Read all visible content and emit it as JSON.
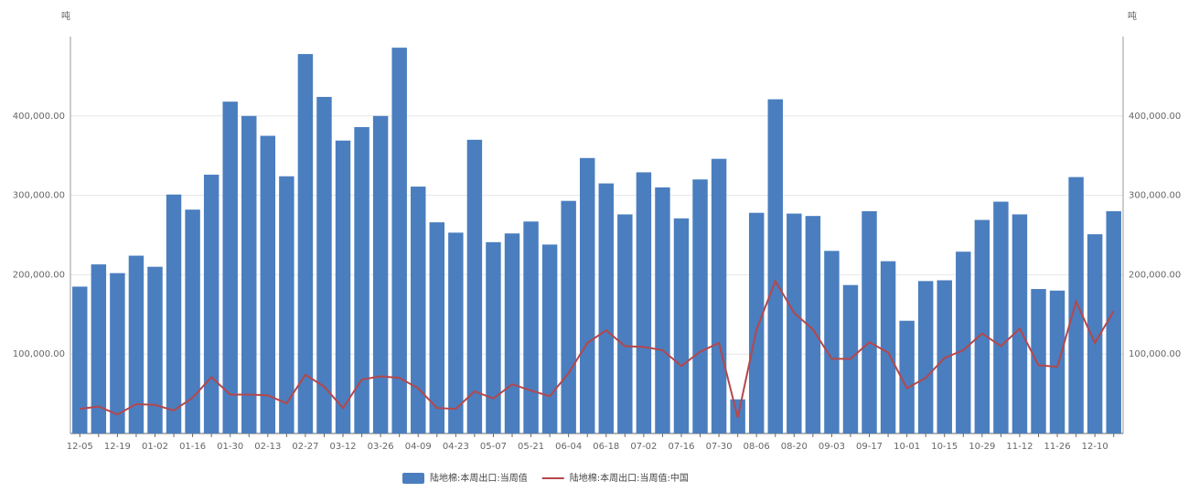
{
  "chart_data": {
    "type": "bar",
    "y_unit": "吨",
    "categories": [
      "12-05",
      null,
      "12-19",
      null,
      "01-02",
      null,
      "01-16",
      null,
      "01-30",
      null,
      "02-13",
      null,
      "02-27",
      null,
      "03-12",
      null,
      "03-26",
      null,
      "04-09",
      null,
      "04-23",
      null,
      "05-07",
      null,
      "05-21",
      null,
      "06-04",
      null,
      "06-18",
      null,
      "07-02",
      null,
      "07-16",
      null,
      "07-30",
      null,
      "08-06",
      null,
      "08-20",
      null,
      "09-03",
      null,
      "09-17",
      null,
      "10-01",
      null,
      "10-15",
      null,
      "10-29",
      null,
      "11-12",
      null,
      "11-26",
      null,
      "12-10",
      null
    ],
    "series": [
      {
        "name": "陆地棉:本周出口:当周值",
        "type": "bar",
        "color": "#4a7ebf",
        "values": [
          185000,
          213000,
          202000,
          224000,
          210000,
          301000,
          282000,
          326000,
          418000,
          400000,
          375000,
          324000,
          478000,
          424000,
          369000,
          386000,
          400000,
          486000,
          311000,
          266000,
          253000,
          370000,
          241000,
          252000,
          267000,
          238000,
          293000,
          347000,
          315000,
          276000,
          329000,
          310000,
          271000,
          320000,
          346000,
          43000,
          278000,
          421000,
          277000,
          274000,
          230000,
          187000,
          280000,
          217000,
          142000,
          192000,
          193000,
          229000,
          269000,
          292000,
          276000,
          182000,
          180000,
          323000,
          251000,
          280000
        ]
      },
      {
        "name": "陆地棉:本周出口:当周值:中国",
        "type": "line",
        "color": "#b5474b",
        "values": [
          31000,
          34000,
          24000,
          37000,
          36000,
          29000,
          45000,
          71000,
          49000,
          49000,
          48000,
          38000,
          74000,
          59000,
          32000,
          68000,
          72000,
          70000,
          57000,
          32000,
          31000,
          53000,
          44000,
          62000,
          54000,
          47000,
          76000,
          114000,
          130000,
          110000,
          109000,
          105000,
          85000,
          103000,
          114000,
          20000,
          131000,
          192000,
          152000,
          131000,
          94000,
          94000,
          115000,
          102000,
          57000,
          70000,
          95000,
          105000,
          126000,
          110000,
          132000,
          86000,
          84000,
          166000,
          114000,
          154000
        ]
      }
    ],
    "ylim": [
      0,
      500000
    ],
    "yticks": [
      {
        "value": 100000,
        "label": "100,000.00"
      },
      {
        "value": 200000,
        "label": "200,000.00"
      },
      {
        "value": 300000,
        "label": "300,000.00"
      },
      {
        "value": 400000,
        "label": "400,000.00"
      }
    ],
    "grid": true,
    "legend": "bottom"
  }
}
